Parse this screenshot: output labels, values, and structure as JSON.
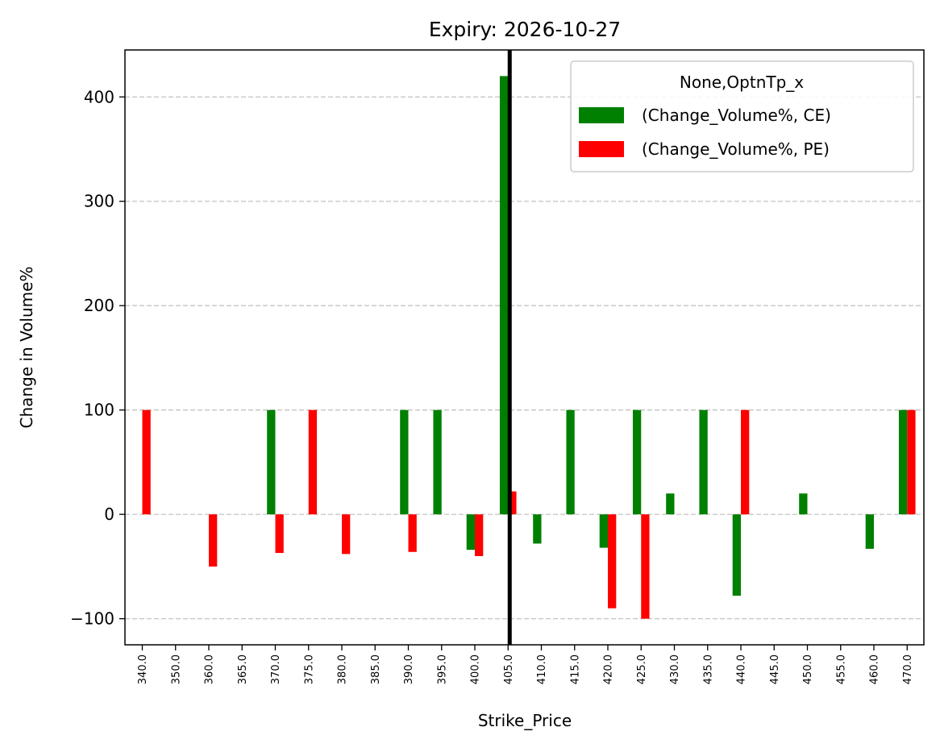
{
  "chart_data": {
    "type": "bar",
    "title": "Expiry: 2026-10-27",
    "xlabel": "Strike_Price",
    "ylabel": "Change in Volume%",
    "categories": [
      "340.0",
      "350.0",
      "360.0",
      "365.0",
      "370.0",
      "375.0",
      "380.0",
      "385.0",
      "390.0",
      "395.0",
      "400.0",
      "405.0",
      "410.0",
      "415.0",
      "420.0",
      "425.0",
      "430.0",
      "435.0",
      "440.0",
      "445.0",
      "450.0",
      "455.0",
      "460.0",
      "470.0"
    ],
    "series": [
      {
        "name": "(Change_Volume%, CE)",
        "color": "#008000",
        "values": [
          0,
          0,
          0,
          0,
          100,
          0,
          0,
          0,
          100,
          100,
          -34,
          420,
          -28,
          100,
          -32,
          100,
          20,
          100,
          -78,
          0,
          20,
          0,
          -33,
          100
        ]
      },
      {
        "name": "(Change_Volume%, PE)",
        "color": "#ff0000",
        "values": [
          100,
          0,
          -50,
          0,
          -37,
          100,
          -38,
          0,
          -36,
          0,
          -40,
          22,
          0,
          0,
          -90,
          -100,
          0,
          0,
          100,
          0,
          0,
          0,
          0,
          100
        ]
      }
    ],
    "legend": {
      "title": "None,OptnTp_x",
      "position": "upper right"
    },
    "ylim": [
      -125,
      445
    ],
    "yticks": [
      -100,
      0,
      100,
      200,
      300,
      400
    ],
    "ytick_labels": [
      "−100",
      "0",
      "100",
      "200",
      "300",
      "400"
    ],
    "grid": {
      "axis": "y",
      "style": "dashed"
    },
    "vline_at_category": "405.0",
    "vline_color": "#000000"
  }
}
